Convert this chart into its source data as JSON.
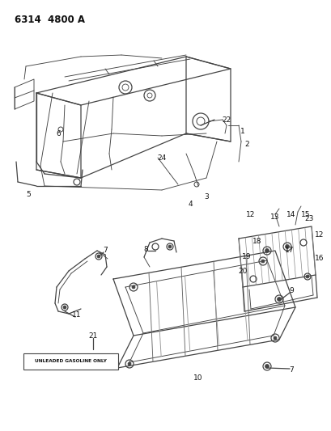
{
  "title": "6314  4800 A",
  "background_color": "#ffffff",
  "line_color": "#444444",
  "text_color": "#111111",
  "fig_width": 4.1,
  "fig_height": 5.33,
  "dpi": 100,
  "unleaded_text": "UNLEADED GASOLINE ONLY"
}
